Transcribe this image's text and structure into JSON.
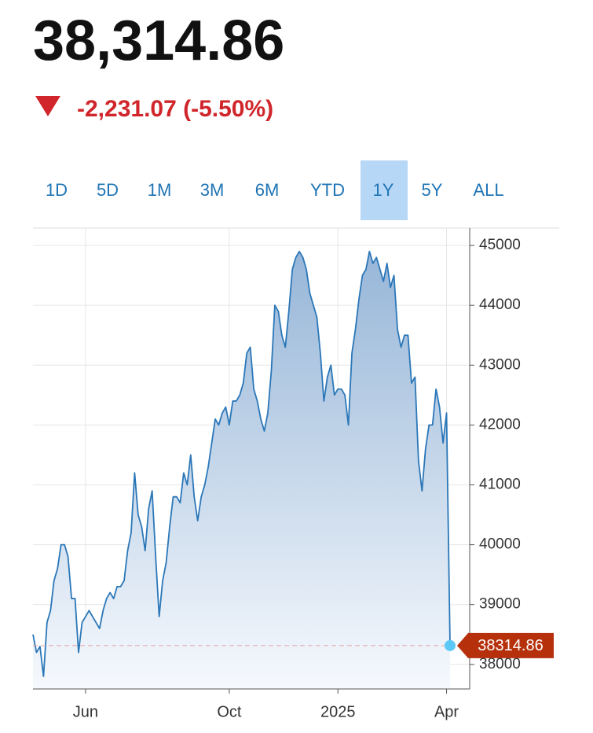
{
  "header": {
    "price": "38,314.86",
    "change": "-2,231.07 (-5.50%)"
  },
  "tabs": [
    "1D",
    "5D",
    "1M",
    "3M",
    "6M",
    "YTD",
    "1Y",
    "5Y",
    "ALL"
  ],
  "selected_tab": "1Y",
  "chart_data": {
    "type": "area",
    "categories": [
      null,
      null,
      null,
      null,
      null,
      null,
      null,
      null,
      null,
      null,
      null,
      null,
      null,
      null,
      null,
      "Jun",
      null,
      null,
      null,
      null,
      null,
      null,
      null,
      null,
      null,
      null,
      null,
      null,
      null,
      null,
      null,
      null,
      null,
      null,
      null,
      null,
      null,
      null,
      null,
      null,
      null,
      null,
      null,
      null,
      null,
      null,
      null,
      null,
      null,
      null,
      null,
      null,
      null,
      null,
      null,
      null,
      "Oct",
      null,
      null,
      null,
      null,
      null,
      null,
      null,
      null,
      null,
      null,
      null,
      null,
      null,
      null,
      null,
      null,
      null,
      null,
      null,
      null,
      null,
      null,
      null,
      null,
      null,
      null,
      null,
      null,
      null,
      null,
      "2025",
      null,
      null,
      null,
      null,
      null,
      null,
      null,
      null,
      null,
      null,
      null,
      null,
      null,
      null,
      null,
      null,
      null,
      null,
      null,
      null,
      null,
      null,
      null,
      null,
      null,
      null,
      null,
      null,
      null,
      null,
      "Apr",
      null
    ],
    "values": [
      38500,
      38200,
      38300,
      37800,
      38700,
      38900,
      39400,
      39600,
      40000,
      40000,
      39800,
      39100,
      39100,
      38200,
      38700,
      38800,
      38900,
      38800,
      38700,
      38600,
      38900,
      39100,
      39200,
      39100,
      39300,
      39300,
      39400,
      39900,
      40200,
      41200,
      40500,
      40300,
      39900,
      40600,
      40900,
      39800,
      38800,
      39400,
      39700,
      40300,
      40800,
      40800,
      40700,
      41200,
      41000,
      41500,
      40800,
      40400,
      40800,
      41000,
      41300,
      41700,
      42100,
      42000,
      42200,
      42300,
      42000,
      42400,
      42400,
      42500,
      42700,
      43200,
      43300,
      42600,
      42400,
      42100,
      41900,
      42200,
      42900,
      44000,
      43900,
      43500,
      43300,
      43900,
      44600,
      44800,
      44900,
      44800,
      44600,
      44200,
      44000,
      43800,
      43200,
      42400,
      42800,
      43000,
      42500,
      42600,
      42600,
      42500,
      42000,
      43200,
      43600,
      44100,
      44500,
      44600,
      44900,
      44700,
      44800,
      44600,
      44400,
      44700,
      44300,
      44500,
      43600,
      43300,
      43500,
      43500,
      42700,
      42800,
      41400,
      40900,
      41600,
      42000,
      42000,
      42600,
      42300,
      41700,
      42200,
      38314.86
    ],
    "color": "#2b77b8",
    "ylim": [
      37590,
      45290
    ],
    "yticks": [
      38000,
      39000,
      40000,
      41000,
      42000,
      43000,
      44000,
      45000
    ],
    "grid": true
  }
}
